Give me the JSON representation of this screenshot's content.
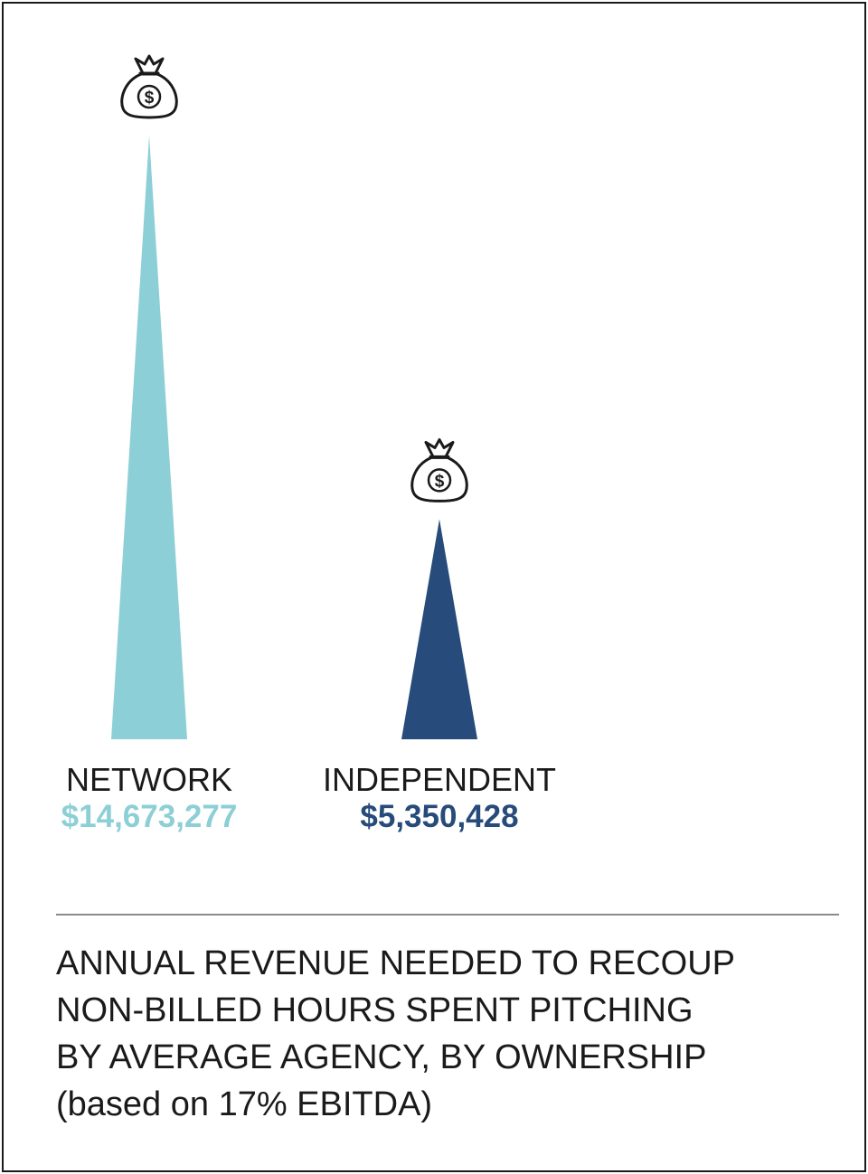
{
  "chart_data": {
    "type": "bar",
    "categories": [
      "NETWORK",
      "INDEPENDENT"
    ],
    "values": [
      14673277,
      5350428
    ],
    "value_labels": [
      "$14,673,277",
      "$5,350,428"
    ],
    "colors": [
      "#8dcfd6",
      "#274b7a"
    ],
    "ylim": [
      0,
      14673277
    ],
    "grid": false,
    "legend": "none",
    "icon": "money-bag-icon"
  },
  "caption": {
    "line1": "ANNUAL REVENUE NEEDED TO RECOUP",
    "line2": "NON-BILLED HOURS SPENT PITCHING",
    "line3": "BY AVERAGE AGENCY, BY OWNERSHIP",
    "line4": "(based on 17% EBITDA)"
  }
}
